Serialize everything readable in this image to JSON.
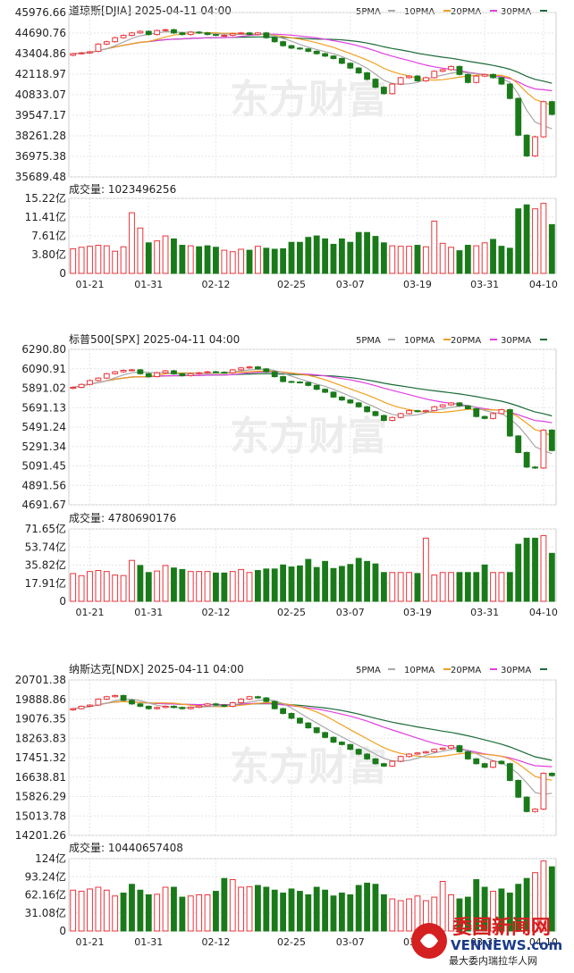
{
  "watermark_center": "东方财富",
  "watermark_bottom": {
    "line1": "委国新闻网",
    "line2": "VENNEWS.com",
    "line3": "最大委内瑞拉华人网"
  },
  "legend_labels": {
    "ma5": "5PMA",
    "ma10": "10PMA",
    "ma20": "20PMA",
    "ma30": "30PMA"
  },
  "colors": {
    "up": "#e8353b",
    "down": "#1a7a1a",
    "ma5": "#a8a8a8",
    "ma10": "#f0a020",
    "ma20": "#e040e0",
    "ma30": "#1a6b3a",
    "grid": "#e6e6e6",
    "axis_text": "#222222"
  },
  "charts": [
    {
      "title": "道琼斯[DJIA] 2025-04-11 04:00",
      "y_ticks": [
        "45976.66",
        "44690.76",
        "43404.86",
        "42118.97",
        "40833.07",
        "39547.17",
        "38261.28",
        "36975.38",
        "35689.48"
      ],
      "ylim": [
        35689.48,
        45976.66
      ],
      "volume_label": "成交量: 1023496256",
      "volume_ticks": [
        "15.22亿",
        "11.41亿",
        "7.61亿",
        "3.80亿",
        "0"
      ],
      "volume_max": 15.22,
      "x_labels": [
        "01-21",
        "01-31",
        "02-12",
        "02-25",
        "03-07",
        "03-19",
        "03-31",
        "04-10"
      ],
      "x_label_index": [
        2,
        9,
        17,
        26,
        33,
        41,
        49,
        56
      ],
      "closes": [
        43400,
        43450,
        43520,
        44000,
        44150,
        44400,
        44550,
        44700,
        44800,
        44600,
        44850,
        44900,
        44700,
        44600,
        44750,
        44700,
        44600,
        44550,
        44550,
        44650,
        44700,
        44600,
        44700,
        44400,
        44150,
        43900,
        43750,
        43700,
        43550,
        43400,
        43250,
        43100,
        42800,
        42500,
        42200,
        41800,
        41300,
        40900,
        41500,
        41900,
        42000,
        41700,
        41900,
        42300,
        42400,
        42600,
        42100,
        41600,
        42000,
        42100,
        41900,
        41500,
        40600,
        38300,
        37000,
        38200,
        40400,
        39600
      ],
      "opens": [
        43300,
        43400,
        43450,
        43550,
        44000,
        44150,
        44400,
        44550,
        44700,
        44800,
        44600,
        44850,
        44900,
        44700,
        44600,
        44750,
        44700,
        44600,
        44550,
        44550,
        44650,
        44700,
        44600,
        44700,
        44400,
        44150,
        43900,
        43750,
        43700,
        43550,
        43400,
        43250,
        43100,
        42800,
        42500,
        42200,
        41800,
        41300,
        40900,
        41500,
        41900,
        42000,
        41700,
        41900,
        42300,
        42400,
        42600,
        42100,
        41600,
        42000,
        42100,
        41900,
        41500,
        40600,
        38300,
        37000,
        38200,
        40400
      ],
      "volumes": [
        5.0,
        5.3,
        5.5,
        5.7,
        5.6,
        4.5,
        5.4,
        12.3,
        9.2,
        6.2,
        6.6,
        7.6,
        7.0,
        5.7,
        5.6,
        5.4,
        5.6,
        5.3,
        4.7,
        4.4,
        4.9,
        4.7,
        5.5,
        5.1,
        4.9,
        5.0,
        6.3,
        6.3,
        7.3,
        7.6,
        7.0,
        5.9,
        7.0,
        6.3,
        8.3,
        8.3,
        7.5,
        6.2,
        5.6,
        5.5,
        5.5,
        5.7,
        5.4,
        10.6,
        6.1,
        5.3,
        4.6,
        5.7,
        5.6,
        6.2,
        6.9,
        5.5,
        5.1,
        13.1,
        13.9,
        13.1,
        14.2,
        9.9
      ]
    },
    {
      "title": "标普500[SPX] 2025-04-11 04:00",
      "y_ticks": [
        "6290.80",
        "6090.91",
        "5891.02",
        "5691.13",
        "5491.24",
        "5291.34",
        "5091.45",
        "4891.56",
        "4691.67"
      ],
      "ylim": [
        4691.67,
        6290.8
      ],
      "volume_label": "成交量: 4780690176",
      "volume_ticks": [
        "71.65亿",
        "53.74亿",
        "35.82亿",
        "17.91亿",
        "0"
      ],
      "volume_max": 71.65,
      "x_labels": [
        "01-21",
        "01-31",
        "02-12",
        "02-25",
        "03-07",
        "03-19",
        "03-31",
        "04-10"
      ],
      "x_label_index": [
        2,
        9,
        17,
        26,
        33,
        41,
        49,
        56
      ],
      "closes": [
        5900,
        5930,
        5970,
        5995,
        6040,
        6060,
        6075,
        6080,
        6040,
        6010,
        6050,
        6070,
        6040,
        6020,
        6040,
        6050,
        6060,
        6055,
        6050,
        6080,
        6100,
        6110,
        6090,
        6060,
        6010,
        5960,
        5955,
        5950,
        5920,
        5880,
        5850,
        5800,
        5770,
        5740,
        5700,
        5650,
        5610,
        5560,
        5590,
        5630,
        5660,
        5650,
        5660,
        5700,
        5720,
        5740,
        5710,
        5680,
        5600,
        5580,
        5630,
        5670,
        5400,
        5230,
        5080,
        5070,
        5460,
        5250
      ],
      "opens": [
        5890,
        5900,
        5930,
        5970,
        5995,
        6040,
        6060,
        6075,
        6080,
        6040,
        6010,
        6050,
        6070,
        6040,
        6020,
        6040,
        6050,
        6060,
        6055,
        6050,
        6080,
        6100,
        6110,
        6090,
        6060,
        6010,
        5960,
        5955,
        5950,
        5920,
        5880,
        5850,
        5800,
        5770,
        5740,
        5700,
        5650,
        5610,
        5560,
        5590,
        5630,
        5660,
        5650,
        5660,
        5700,
        5720,
        5740,
        5710,
        5680,
        5600,
        5580,
        5630,
        5670,
        5400,
        5230,
        5080,
        5070,
        5460
      ],
      "volumes": [
        27.5,
        25.4,
        29.5,
        30.5,
        29.5,
        26.0,
        25.5,
        40.5,
        35.5,
        28.5,
        30.0,
        35.5,
        33.0,
        31.5,
        29.5,
        29.5,
        29.5,
        28.0,
        28.0,
        29.5,
        31.5,
        28.5,
        30.5,
        32.0,
        32.0,
        36.0,
        34.0,
        35.0,
        41.5,
        33.5,
        39.5,
        32.5,
        34.5,
        36.5,
        42.5,
        39.5,
        37.0,
        28.5,
        28.5,
        28.5,
        28.5,
        27.5,
        62.5,
        26.0,
        28.5,
        28.5,
        28.5,
        28.5,
        28.5,
        36.0,
        28.5,
        28.5,
        28.5,
        56.5,
        62.5,
        62.5,
        65.0,
        47.5
      ]
    },
    {
      "title": "纳斯达克[NDX] 2025-04-11 04:00",
      "y_ticks": [
        "20701.38",
        "19888.86",
        "19076.35",
        "18263.83",
        "17451.32",
        "16638.81",
        "15826.29",
        "15013.78",
        "14201.26"
      ],
      "ylim": [
        14201.26,
        20701.38
      ],
      "volume_label": "成交量: 10440657408",
      "volume_ticks": [
        "124亿",
        "93.24亿",
        "62.16亿",
        "31.08亿",
        "0"
      ],
      "volume_max": 124,
      "x_labels": [
        "01-21",
        "01-31",
        "02-12",
        "02-25",
        "03-07",
        "03-19",
        "03-31",
        "04-10"
      ],
      "x_label_index": [
        2,
        9,
        17,
        26,
        33,
        41,
        49,
        56
      ],
      "closes": [
        19500,
        19600,
        19650,
        19900,
        20000,
        20050,
        19850,
        19700,
        19600,
        19500,
        19550,
        19600,
        19550,
        19500,
        19560,
        19620,
        19700,
        19650,
        19600,
        19750,
        19900,
        20000,
        19950,
        19800,
        19500,
        19300,
        19100,
        18900,
        18700,
        18500,
        18300,
        18100,
        18000,
        17800,
        17600,
        17400,
        17200,
        17100,
        17300,
        17500,
        17600,
        17650,
        17700,
        17800,
        17850,
        17950,
        17700,
        17400,
        17200,
        17050,
        17300,
        17200,
        16500,
        15800,
        15200,
        15300,
        16800,
        16700
      ],
      "opens": [
        19450,
        19500,
        19600,
        19650,
        19900,
        20000,
        20050,
        19850,
        19700,
        19600,
        19500,
        19550,
        19600,
        19550,
        19500,
        19560,
        19620,
        19700,
        19650,
        19600,
        19750,
        19900,
        20000,
        19950,
        19800,
        19500,
        19300,
        19100,
        18900,
        18700,
        18500,
        18300,
        18100,
        18000,
        17800,
        17600,
        17400,
        17200,
        17100,
        17300,
        17500,
        17600,
        17650,
        17700,
        17800,
        17850,
        17950,
        17700,
        17400,
        17200,
        17050,
        17300,
        17200,
        16500,
        15800,
        15200,
        15300,
        16800
      ],
      "volumes": [
        70,
        68,
        72,
        75,
        70,
        60,
        65,
        80,
        70,
        62,
        63,
        75,
        75,
        58,
        60,
        62,
        62,
        68,
        90,
        88,
        75,
        76,
        78,
        75,
        70,
        65,
        72,
        68,
        62,
        75,
        70,
        60,
        65,
        62,
        78,
        82,
        80,
        62,
        55,
        52,
        55,
        60,
        52,
        58,
        85,
        62,
        55,
        58,
        88,
        75,
        68,
        72,
        65,
        80,
        90,
        100,
        120,
        110
      ]
    }
  ]
}
